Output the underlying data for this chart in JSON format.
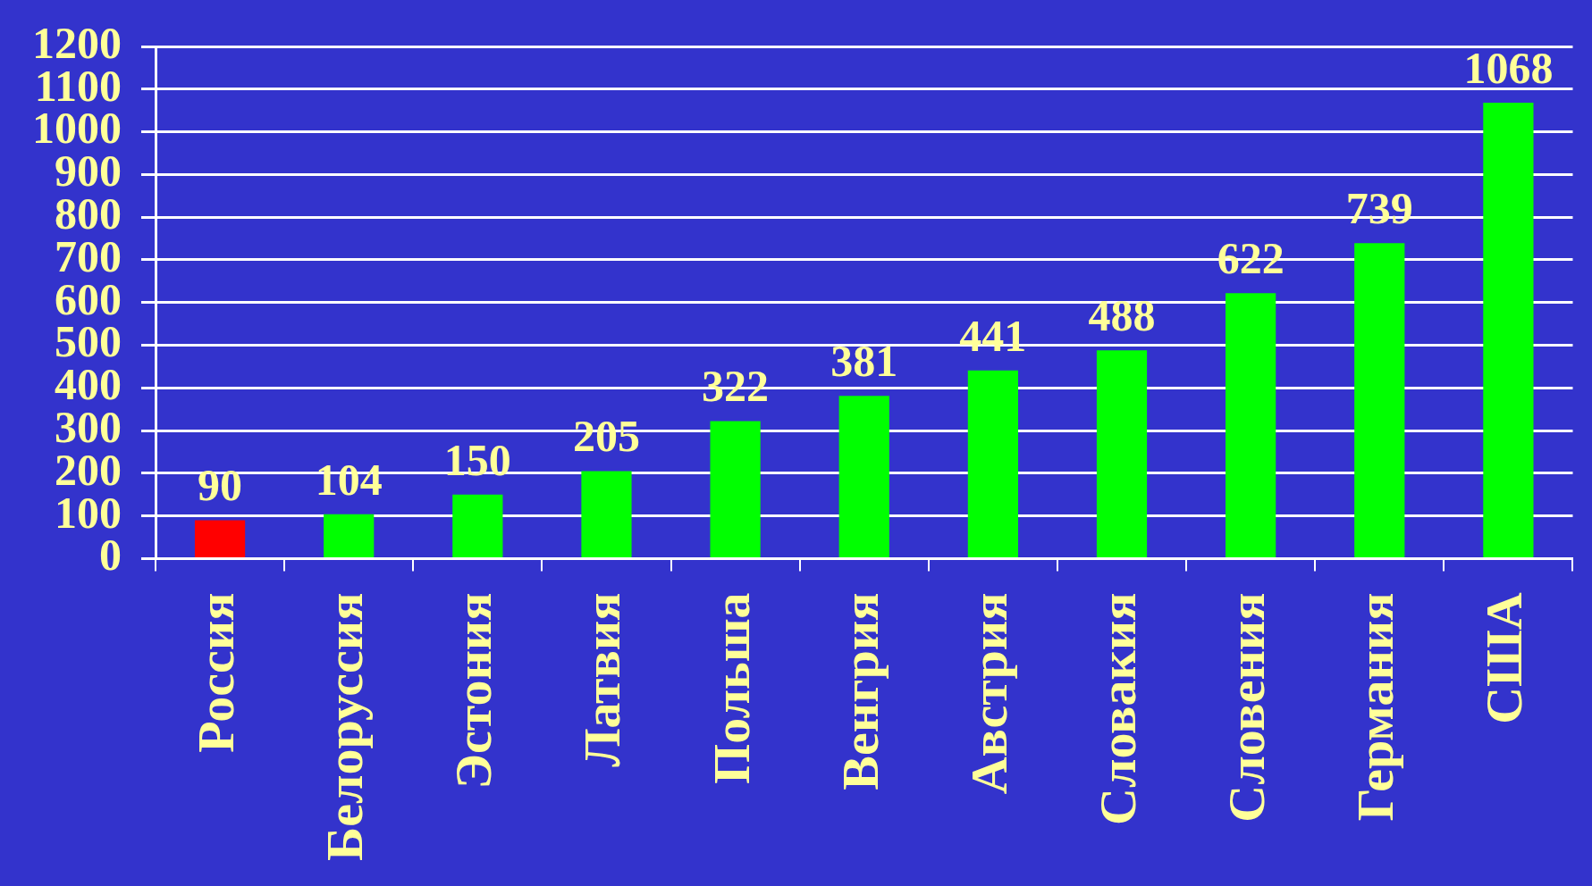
{
  "chart_data": {
    "type": "bar",
    "categories": [
      "Россия",
      "Белоруссия",
      "Эстония",
      "Латвия",
      "Польша",
      "Венгрия",
      "Австрия",
      "Словакия",
      "Словения",
      "Германия",
      "США"
    ],
    "values": [
      90,
      104,
      150,
      205,
      322,
      381,
      441,
      488,
      622,
      739,
      1068
    ],
    "colors": [
      "#ff0000",
      "#00ff00",
      "#00ff00",
      "#00ff00",
      "#00ff00",
      "#00ff00",
      "#00ff00",
      "#00ff00",
      "#00ff00",
      "#00ff00",
      "#00ff00"
    ],
    "ylim": [
      0,
      1200
    ],
    "yticks": [
      0,
      100,
      200,
      300,
      400,
      500,
      600,
      700,
      800,
      900,
      1000,
      1100,
      1200
    ],
    "grid": "y",
    "data_labels": true
  }
}
